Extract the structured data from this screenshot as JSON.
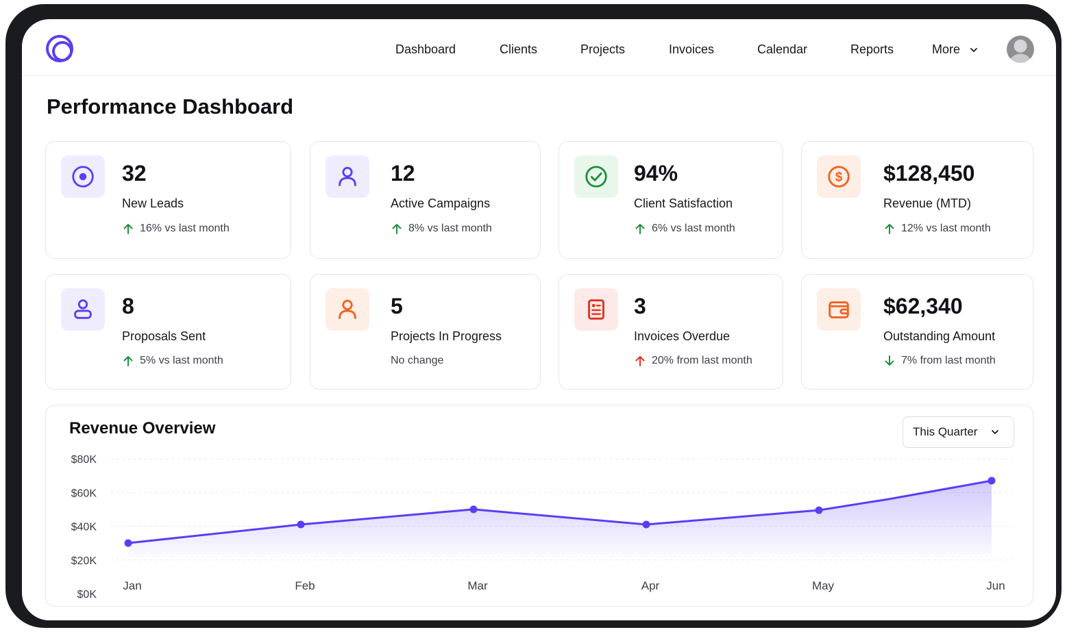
{
  "nav": {
    "items": [
      "Dashboard",
      "Clients",
      "Projects",
      "Invoices",
      "Calendar",
      "Reports"
    ],
    "more_label": "More"
  },
  "page": {
    "title": "Performance Dashboard"
  },
  "stats": [
    {
      "value": "32",
      "label": "New Leads",
      "trend": "16% vs last month",
      "direction": "up",
      "icon": "target-icon"
    },
    {
      "value": "12",
      "label": "Active Campaigns",
      "trend": "8% vs last month",
      "direction": "up",
      "icon": "user-icon"
    },
    {
      "value": "94%",
      "label": "Client Satisfaction",
      "trend": "6% vs last month",
      "direction": "up",
      "icon": "check-circle-icon"
    },
    {
      "value": "$128,450",
      "label": "Revenue (MTD)",
      "trend": "12% vs last month",
      "direction": "up",
      "icon": "dollar-circle-icon"
    },
    {
      "value": "8",
      "label": "Proposals Sent",
      "trend": "5% vs last month",
      "direction": "up",
      "icon": "user-badge-icon"
    },
    {
      "value": "5",
      "label": "Projects In Progress",
      "trend": "No change",
      "direction": "none",
      "icon": "user-icon"
    },
    {
      "value": "3",
      "label": "Invoices Overdue",
      "trend": "20% from last month",
      "direction": "up-bad",
      "icon": "invoice-icon"
    },
    {
      "value": "$62,340",
      "label": "Outstanding Amount",
      "trend": "7% from last month",
      "direction": "down",
      "icon": "wallet-icon"
    }
  ],
  "colors": {
    "accent": "#5b3df5",
    "trend_up": "#1e8e3e",
    "trend_bad": "#e0301e",
    "orange": "#f0621f",
    "green": "#1e8e3e",
    "red": "#e0301e"
  },
  "revenue": {
    "title": "Revenue Overview",
    "range_label": "This Quarter"
  },
  "chart_data": {
    "type": "area",
    "title": "Revenue Overview",
    "categories": [
      "Jan",
      "Feb",
      "Mar",
      "Apr",
      "May",
      "Jun"
    ],
    "series": [
      {
        "x": [
          0,
          1,
          2,
          3,
          4,
          4.4,
          5
        ],
        "values": [
          30000,
          41000,
          50000,
          41000,
          49500,
          56000,
          67000
        ]
      }
    ],
    "y_ticks": [
      "$80K",
      "$60K",
      "$40K",
      "$20K",
      "$0K"
    ],
    "ylim": [
      0,
      80000
    ],
    "grid": true,
    "color": "#5b3df5"
  }
}
